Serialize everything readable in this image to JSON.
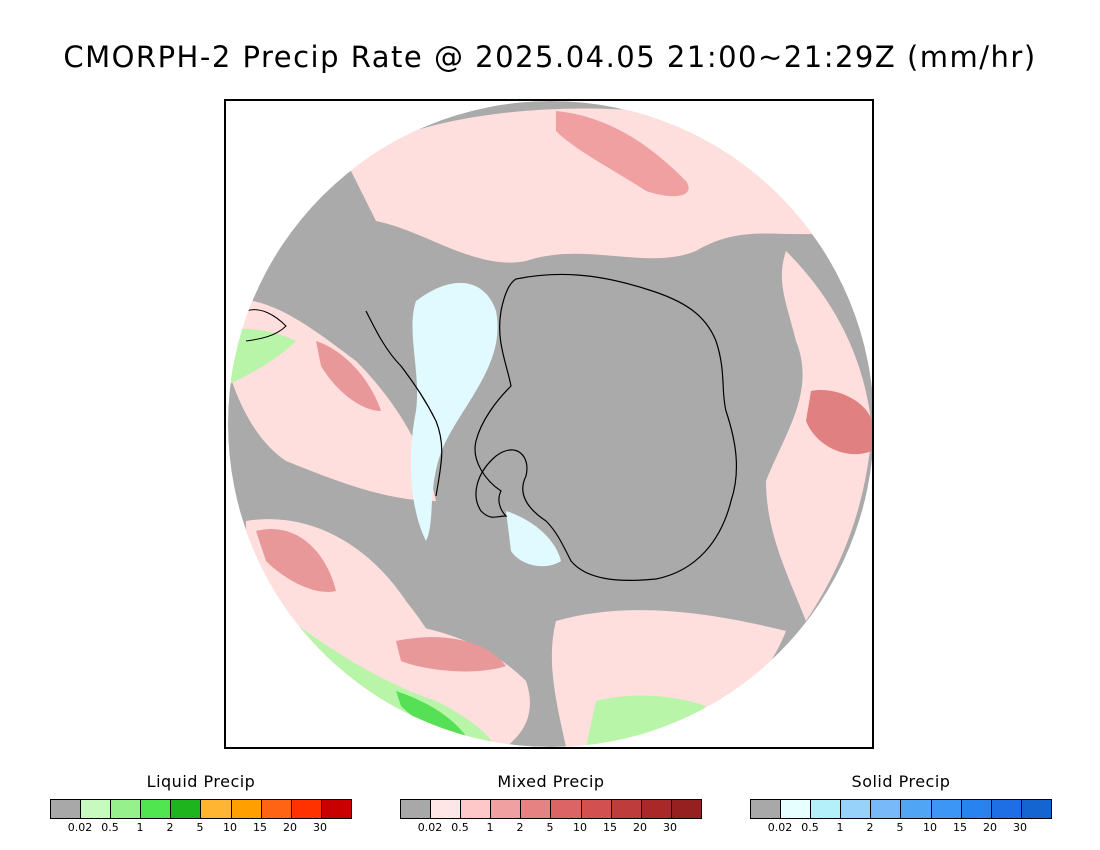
{
  "title": "CMORPH-2 Precip Rate @ 2025.04.05 21:00~21:29Z (mm/hr)",
  "map": {
    "projection": "south-polar-stereographic",
    "region": "Antarctica / Southern Ocean",
    "colors": {
      "no_precip": "#aaaaaa",
      "mixed_light": "#ffdede",
      "mixed_medium": "#f0a0a0",
      "mixed_heavy": "#d87070",
      "solid_light": "#e0faff",
      "liquid_light": "#b8f5a8",
      "liquid_medium": "#55e055",
      "coastline": "#000000"
    }
  },
  "legends": [
    {
      "title": "Liquid Precip",
      "colors": [
        "#a8a8a8",
        "#c8fac0",
        "#96f08c",
        "#50e650",
        "#1eb41e",
        "#ffb432",
        "#ffa000",
        "#ff6414",
        "#ff3200",
        "#c80000"
      ],
      "ticks": [
        "0.02",
        "0.5",
        "1",
        "2",
        "5",
        "10",
        "15",
        "20",
        "30"
      ]
    },
    {
      "title": "Mixed Precip",
      "colors": [
        "#a8a8a8",
        "#ffe6e6",
        "#ffc8c8",
        "#f0a0a0",
        "#e68282",
        "#dc6464",
        "#d25050",
        "#be3c3c",
        "#aa2828",
        "#962020"
      ],
      "ticks": [
        "0.02",
        "0.5",
        "1",
        "2",
        "5",
        "10",
        "15",
        "20",
        "30"
      ]
    },
    {
      "title": "Solid Precip",
      "colors": [
        "#a8a8a8",
        "#e6ffff",
        "#b4f0fa",
        "#96d2fa",
        "#78b9fa",
        "#50a5f5",
        "#3c96f5",
        "#2882f0",
        "#1e6ee6",
        "#1464d2"
      ],
      "ticks": [
        "0.02",
        "0.5",
        "1",
        "2",
        "5",
        "10",
        "15",
        "20",
        "30"
      ]
    }
  ]
}
